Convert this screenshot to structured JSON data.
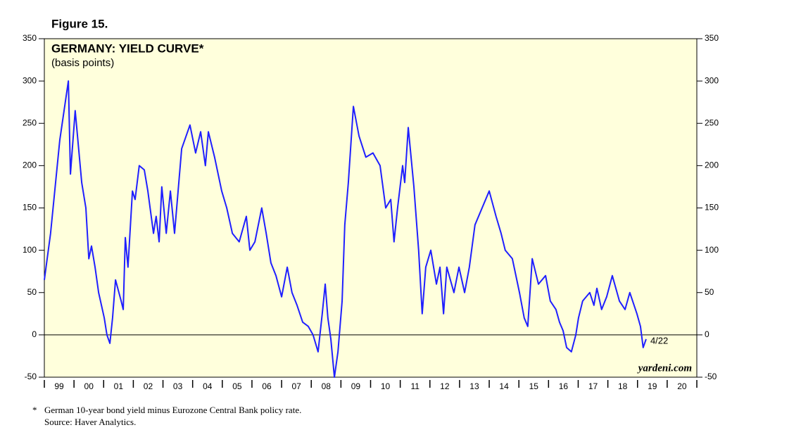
{
  "chart_data": {
    "type": "line",
    "figure_label": "Figure 15.",
    "title": "GERMANY: YIELD CURVE*",
    "subtitle": "(basis points)",
    "annotation": "4/22",
    "source_mark": "yardeni.com",
    "footnote": "German 10-year bond yield minus Eurozone Central Bank policy rate.",
    "footnote_marker": "*",
    "source": "Source: Haver Analytics.",
    "categories": [
      "99",
      "00",
      "01",
      "02",
      "03",
      "04",
      "05",
      "06",
      "07",
      "08",
      "09",
      "10",
      "11",
      "12",
      "13",
      "14",
      "15",
      "16",
      "17",
      "18",
      "19",
      "20"
    ],
    "xlim": [
      1999,
      2021
    ],
    "ylim": [
      -50,
      350
    ],
    "yticks": [
      -50,
      0,
      50,
      100,
      150,
      200,
      250,
      300,
      350
    ],
    "color": "#1f1fff",
    "x": [
      1999.0,
      1999.21,
      1999.52,
      1999.81,
      1999.88,
      2000.04,
      2000.26,
      2000.4,
      2000.5,
      2000.59,
      2000.71,
      2000.83,
      2001.02,
      2001.11,
      2001.21,
      2001.3,
      2001.4,
      2001.59,
      2001.66,
      2001.73,
      2001.82,
      2001.97,
      2002.06,
      2002.2,
      2002.37,
      2002.49,
      2002.68,
      2002.77,
      2002.87,
      2002.96,
      2003.11,
      2003.25,
      2003.39,
      2003.63,
      2003.91,
      2004.1,
      2004.27,
      2004.43,
      2004.53,
      2004.74,
      2004.98,
      2005.15,
      2005.34,
      2005.57,
      2005.81,
      2005.93,
      2006.1,
      2006.33,
      2006.48,
      2006.64,
      2006.81,
      2007.0,
      2007.19,
      2007.35,
      2007.52,
      2007.71,
      2007.9,
      2008.06,
      2008.23,
      2008.37,
      2008.47,
      2008.56,
      2008.66,
      2008.78,
      2008.9,
      2009.04,
      2009.13,
      2009.25,
      2009.42,
      2009.61,
      2009.84,
      2010.08,
      2010.32,
      2010.51,
      2010.68,
      2010.79,
      2010.91,
      2011.08,
      2011.15,
      2011.27,
      2011.46,
      2011.62,
      2011.74,
      2011.86,
      2012.03,
      2012.22,
      2012.34,
      2012.46,
      2012.57,
      2012.81,
      2012.98,
      2013.17,
      2013.33,
      2013.52,
      2013.76,
      2014.0,
      2014.23,
      2014.4,
      2014.54,
      2014.78,
      2015.02,
      2015.18,
      2015.3,
      2015.45,
      2015.66,
      2015.9,
      2016.06,
      2016.25,
      2016.37,
      2016.49,
      2016.61,
      2016.77,
      2016.92,
      2017.01,
      2017.15,
      2017.39,
      2017.53,
      2017.63,
      2017.79,
      2017.96,
      2018.15,
      2018.39,
      2018.58,
      2018.74,
      2018.98,
      2019.1,
      2019.19,
      2019.29
    ],
    "values": [
      65,
      120,
      230,
      300,
      190,
      265,
      180,
      150,
      90,
      105,
      80,
      50,
      20,
      0,
      -10,
      20,
      65,
      40,
      30,
      115,
      80,
      170,
      160,
      200,
      195,
      170,
      120,
      140,
      110,
      175,
      120,
      170,
      120,
      220,
      248,
      215,
      240,
      200,
      240,
      210,
      170,
      150,
      120,
      110,
      140,
      100,
      110,
      150,
      120,
      85,
      70,
      45,
      80,
      50,
      35,
      15,
      10,
      0,
      -20,
      25,
      60,
      20,
      -5,
      -50,
      -20,
      40,
      130,
      180,
      270,
      235,
      210,
      215,
      200,
      150,
      160,
      110,
      150,
      200,
      180,
      245,
      175,
      100,
      25,
      80,
      100,
      60,
      80,
      25,
      80,
      50,
      80,
      50,
      80,
      130,
      150,
      170,
      140,
      120,
      100,
      90,
      50,
      20,
      10,
      90,
      60,
      70,
      40,
      30,
      15,
      5,
      -15,
      -20,
      0,
      20,
      40,
      50,
      35,
      55,
      30,
      45,
      70,
      40,
      30,
      50,
      25,
      10,
      -15,
      -5
    ]
  }
}
